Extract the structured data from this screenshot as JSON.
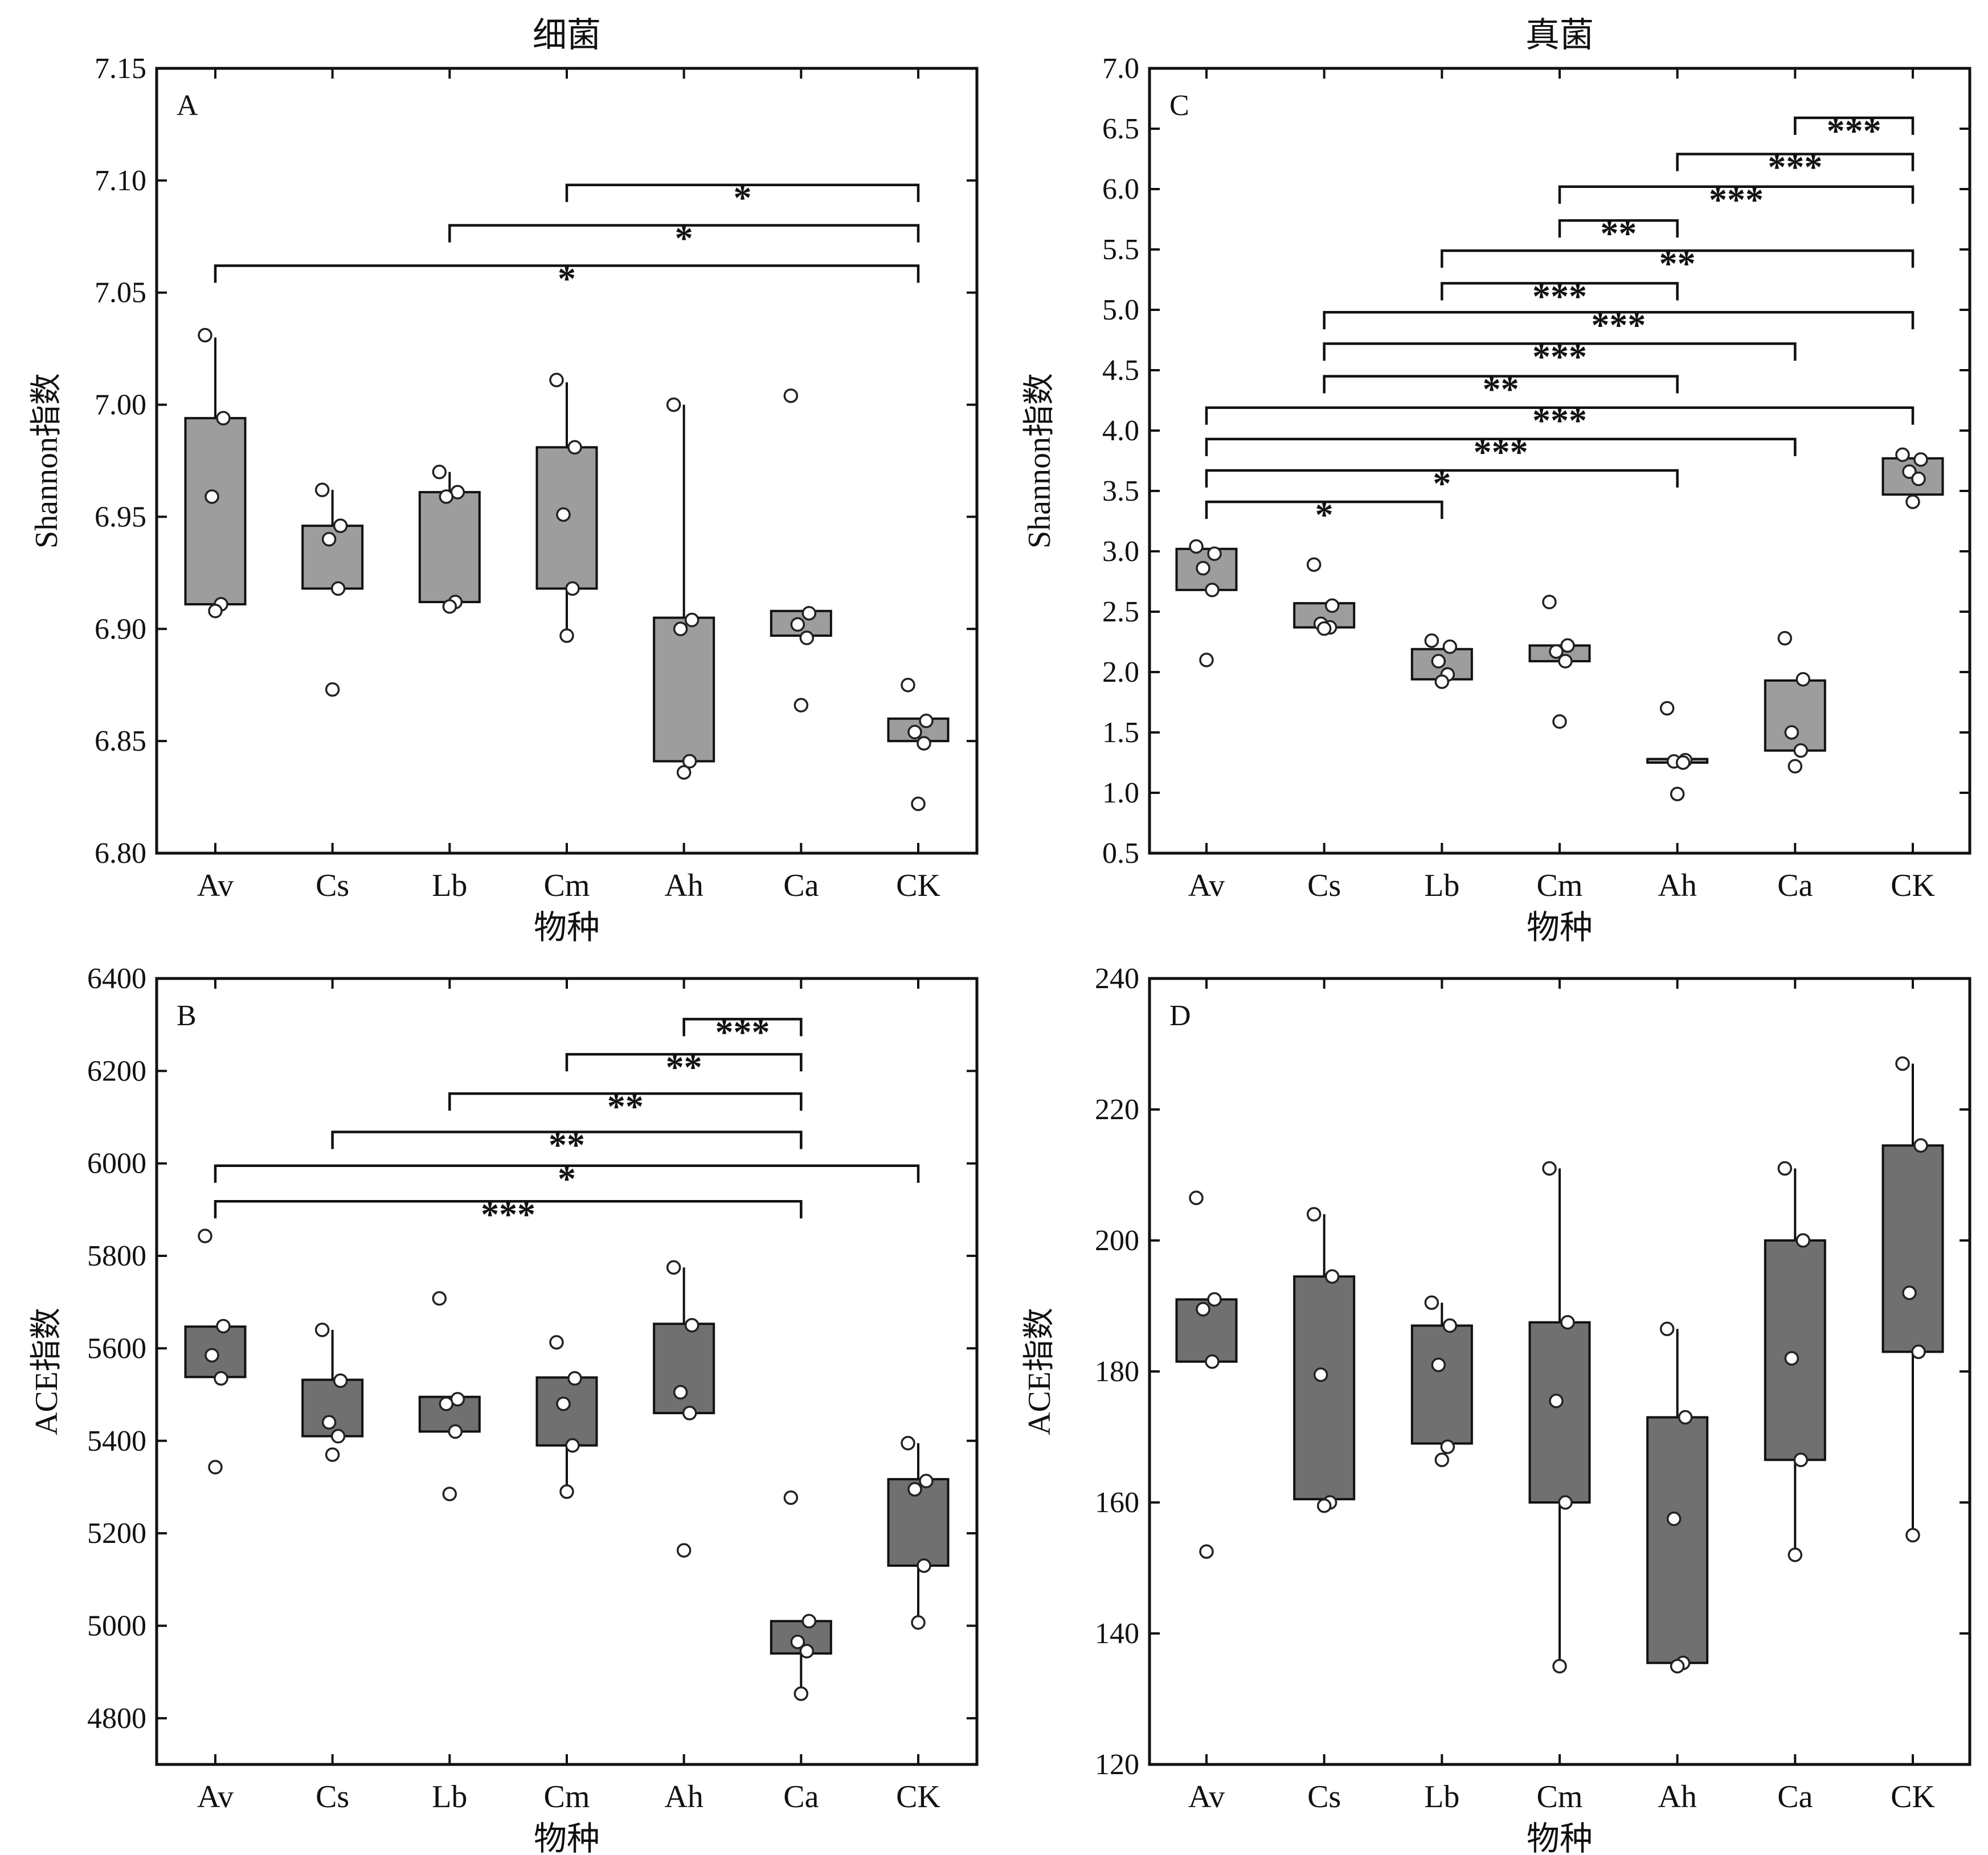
{
  "colors": {
    "bacteria_box": "#9d9d9d",
    "fungi_box": "#707070",
    "frame": "#111111",
    "point_fill": "#ffffff"
  },
  "chart_data": [
    {
      "id": "A",
      "type": "box",
      "panel_label": "A",
      "title": "细菌",
      "xlabel": "物种",
      "ylabel": "Shannon指数",
      "categories": [
        "Av",
        "Cs",
        "Lb",
        "Cm",
        "Ah",
        "Ca",
        "CK"
      ],
      "ylim": [
        6.8,
        7.15
      ],
      "yticks": [
        6.8,
        6.85,
        6.9,
        6.95,
        7.0,
        7.05,
        7.1,
        7.15
      ],
      "ytick_labels": [
        "6.80",
        "6.85",
        "6.90",
        "6.95",
        "7.00",
        "7.05",
        "7.10",
        "7.15"
      ],
      "box_color": "#9d9d9d",
      "boxes": [
        {
          "q1": 6.911,
          "q3": 6.994,
          "whisker_low": 6.911,
          "whisker_high": 7.03,
          "points": [
            7.031,
            6.994,
            6.959,
            6.911,
            6.908
          ]
        },
        {
          "q1": 6.918,
          "q3": 6.946,
          "whisker_low": 6.918,
          "whisker_high": 6.962,
          "points": [
            6.962,
            6.946,
            6.94,
            6.918,
            6.873
          ]
        },
        {
          "q1": 6.912,
          "q3": 6.961,
          "whisker_low": 6.912,
          "whisker_high": 6.97,
          "points": [
            6.97,
            6.961,
            6.959,
            6.912,
            6.91
          ]
        },
        {
          "q1": 6.918,
          "q3": 6.981,
          "whisker_low": 6.897,
          "whisker_high": 7.01,
          "points": [
            7.011,
            6.981,
            6.951,
            6.918,
            6.897
          ]
        },
        {
          "q1": 6.841,
          "q3": 6.905,
          "whisker_low": 6.841,
          "whisker_high": 7.0,
          "points": [
            7.0,
            6.904,
            6.9,
            6.841,
            6.836
          ]
        },
        {
          "q1": 6.897,
          "q3": 6.908,
          "whisker_low": 6.897,
          "whisker_high": 6.908,
          "points": [
            7.004,
            6.907,
            6.902,
            6.896,
            6.866
          ]
        },
        {
          "q1": 6.85,
          "q3": 6.86,
          "whisker_low": 6.85,
          "whisker_high": 6.86,
          "points": [
            6.875,
            6.859,
            6.854,
            6.849,
            6.822
          ]
        }
      ],
      "significance": [
        {
          "from": "Cm",
          "to": "CK",
          "y": 7.098,
          "label": "*"
        },
        {
          "from": "Lb",
          "to": "CK",
          "y": 7.08,
          "label": "*"
        },
        {
          "from": "Av",
          "to": "CK",
          "y": 7.062,
          "label": "*"
        }
      ]
    },
    {
      "id": "B",
      "type": "box",
      "panel_label": "B",
      "title": "",
      "xlabel": "物种",
      "ylabel": "ACE指数",
      "categories": [
        "Av",
        "Cs",
        "Lb",
        "Cm",
        "Ah",
        "Ca",
        "CK"
      ],
      "ylim": [
        4700,
        6400
      ],
      "yticks": [
        4800,
        5000,
        5200,
        5400,
        5600,
        5800,
        6000,
        6200,
        6400
      ],
      "ytick_labels": [
        "4800",
        "5000",
        "5200",
        "5400",
        "5600",
        "5800",
        "6000",
        "6200",
        "6400"
      ],
      "box_color": "#707070",
      "boxes": [
        {
          "q1": 5538,
          "q3": 5647,
          "whisker_low": 5538,
          "whisker_high": 5647,
          "points": [
            5843,
            5648,
            5585,
            5535,
            5343
          ]
        },
        {
          "q1": 5410,
          "q3": 5532,
          "whisker_low": 5410,
          "whisker_high": 5640,
          "points": [
            5640,
            5530,
            5440,
            5410,
            5370
          ]
        },
        {
          "q1": 5420,
          "q3": 5495,
          "whisker_low": 5420,
          "whisker_high": 5495,
          "points": [
            5708,
            5490,
            5480,
            5420,
            5285
          ]
        },
        {
          "q1": 5390,
          "q3": 5537,
          "whisker_low": 5290,
          "whisker_high": 5537,
          "points": [
            5613,
            5535,
            5480,
            5390,
            5290
          ]
        },
        {
          "q1": 5460,
          "q3": 5653,
          "whisker_low": 5460,
          "whisker_high": 5775,
          "points": [
            5775,
            5650,
            5505,
            5460,
            5163
          ]
        },
        {
          "q1": 4940,
          "q3": 5010,
          "whisker_low": 4855,
          "whisker_high": 5010,
          "points": [
            5277,
            5010,
            4965,
            4945,
            4853
          ]
        },
        {
          "q1": 5130,
          "q3": 5317,
          "whisker_low": 5007,
          "whisker_high": 5395,
          "points": [
            5395,
            5313,
            5295,
            5130,
            5007
          ]
        }
      ],
      "significance": [
        {
          "from": "Ah",
          "to": "Ca",
          "y": 6312,
          "label": "***"
        },
        {
          "from": "Cm",
          "to": "Ca",
          "y": 6236,
          "label": "**"
        },
        {
          "from": "Lb",
          "to": "Ca",
          "y": 6151,
          "label": "**"
        },
        {
          "from": "Cs",
          "to": "Ca",
          "y": 6068,
          "label": "**"
        },
        {
          "from": "Av",
          "to": "CK",
          "y": 5995,
          "label": "*"
        },
        {
          "from": "Av",
          "to": "Ca",
          "y": 5918,
          "label": "***"
        }
      ]
    },
    {
      "id": "C",
      "type": "box",
      "panel_label": "C",
      "title": "真菌",
      "xlabel": "物种",
      "ylabel": "Shannon指数",
      "categories": [
        "Av",
        "Cs",
        "Lb",
        "Cm",
        "Ah",
        "Ca",
        "CK"
      ],
      "ylim": [
        0.5,
        7.0
      ],
      "yticks": [
        0.5,
        1.0,
        1.5,
        2.0,
        2.5,
        3.0,
        3.5,
        4.0,
        4.5,
        5.0,
        5.5,
        6.0,
        6.5,
        7.0
      ],
      "ytick_labels": [
        "0.5",
        "1.0",
        "1.5",
        "2.0",
        "2.5",
        "3.0",
        "3.5",
        "4.0",
        "4.5",
        "5.0",
        "5.5",
        "6.0",
        "6.5",
        "7.0"
      ],
      "box_color": "#9d9d9d",
      "boxes": [
        {
          "q1": 2.68,
          "q3": 3.02,
          "whisker_low": 2.68,
          "whisker_high": 3.02,
          "points": [
            3.04,
            2.98,
            2.86,
            2.68,
            2.1
          ]
        },
        {
          "q1": 2.37,
          "q3": 2.57,
          "whisker_low": 2.37,
          "whisker_high": 2.57,
          "points": [
            2.89,
            2.55,
            2.4,
            2.37,
            2.36
          ]
        },
        {
          "q1": 1.94,
          "q3": 2.19,
          "whisker_low": 1.94,
          "whisker_high": 2.19,
          "points": [
            2.26,
            2.21,
            2.09,
            1.98,
            1.92
          ]
        },
        {
          "q1": 2.09,
          "q3": 2.22,
          "whisker_low": 2.09,
          "whisker_high": 2.22,
          "points": [
            2.58,
            2.22,
            2.17,
            2.09,
            1.59
          ]
        },
        {
          "q1": 1.25,
          "q3": 1.28,
          "whisker_low": 1.25,
          "whisker_high": 1.28,
          "points": [
            1.7,
            1.27,
            1.26,
            1.25,
            0.99
          ]
        },
        {
          "q1": 1.35,
          "q3": 1.93,
          "whisker_low": 1.35,
          "whisker_high": 1.93,
          "points": [
            2.28,
            1.94,
            1.5,
            1.35,
            1.22
          ]
        },
        {
          "q1": 3.47,
          "q3": 3.77,
          "whisker_low": 3.47,
          "whisker_high": 3.77,
          "points": [
            3.8,
            3.76,
            3.66,
            3.6,
            3.41
          ]
        }
      ],
      "significance": [
        {
          "from": "Ca",
          "to": "CK",
          "y": 6.59,
          "label": "***"
        },
        {
          "from": "Ah",
          "to": "CK",
          "y": 6.29,
          "label": "***"
        },
        {
          "from": "Cm",
          "to": "CK",
          "y": 6.02,
          "label": "***"
        },
        {
          "from": "Cm",
          "to": "Ah",
          "y": 5.74,
          "label": "**"
        },
        {
          "from": "Lb",
          "to": "CK",
          "y": 5.49,
          "label": "**"
        },
        {
          "from": "Lb",
          "to": "Ah",
          "y": 5.22,
          "label": "***"
        },
        {
          "from": "Cs",
          "to": "CK",
          "y": 4.98,
          "label": "***"
        },
        {
          "from": "Cs",
          "to": "Ca",
          "y": 4.72,
          "label": "***"
        },
        {
          "from": "Cs",
          "to": "Ah",
          "y": 4.45,
          "label": "**"
        },
        {
          "from": "Av",
          "to": "CK",
          "y": 4.19,
          "label": "***"
        },
        {
          "from": "Av",
          "to": "Ca",
          "y": 3.93,
          "label": "***"
        },
        {
          "from": "Av",
          "to": "Ah",
          "y": 3.67,
          "label": "*"
        },
        {
          "from": "Av",
          "to": "Lb",
          "y": 3.41,
          "label": "*"
        }
      ]
    },
    {
      "id": "D",
      "type": "box",
      "panel_label": "D",
      "title": "",
      "xlabel": "物种",
      "ylabel": "ACE指数",
      "categories": [
        "Av",
        "Cs",
        "Lb",
        "Cm",
        "Ah",
        "Ca",
        "CK"
      ],
      "ylim": [
        120,
        240
      ],
      "yticks": [
        120,
        140,
        160,
        180,
        200,
        220,
        240
      ],
      "ytick_labels": [
        "120",
        "140",
        "160",
        "180",
        "200",
        "220",
        "240"
      ],
      "box_color": "#707070",
      "boxes": [
        {
          "q1": 181.5,
          "q3": 191.0,
          "whisker_low": 181.5,
          "whisker_high": 191.0,
          "points": [
            206.5,
            191.0,
            189.5,
            181.5,
            152.5
          ]
        },
        {
          "q1": 160.5,
          "q3": 194.5,
          "whisker_low": 160.5,
          "whisker_high": 204.0,
          "points": [
            204.0,
            194.5,
            179.5,
            160.0,
            159.5
          ]
        },
        {
          "q1": 169.0,
          "q3": 187.0,
          "whisker_low": 169.0,
          "whisker_high": 190.5,
          "points": [
            190.5,
            187.0,
            181.0,
            168.5,
            166.5
          ]
        },
        {
          "q1": 160.0,
          "q3": 187.5,
          "whisker_low": 135.0,
          "whisker_high": 211.0,
          "points": [
            211.0,
            187.5,
            175.5,
            160.0,
            135.0
          ]
        },
        {
          "q1": 135.5,
          "q3": 173.0,
          "whisker_low": 135.5,
          "whisker_high": 186.5,
          "points": [
            186.5,
            173.0,
            157.5,
            135.5,
            135.0
          ]
        },
        {
          "q1": 166.5,
          "q3": 200.0,
          "whisker_low": 152.0,
          "whisker_high": 211.0,
          "points": [
            211.0,
            200.0,
            182.0,
            166.5,
            152.0
          ]
        },
        {
          "q1": 183.0,
          "q3": 214.5,
          "whisker_low": 155.0,
          "whisker_high": 227.0,
          "points": [
            227.0,
            214.5,
            192.0,
            183.0,
            155.0
          ]
        }
      ],
      "significance": []
    }
  ]
}
